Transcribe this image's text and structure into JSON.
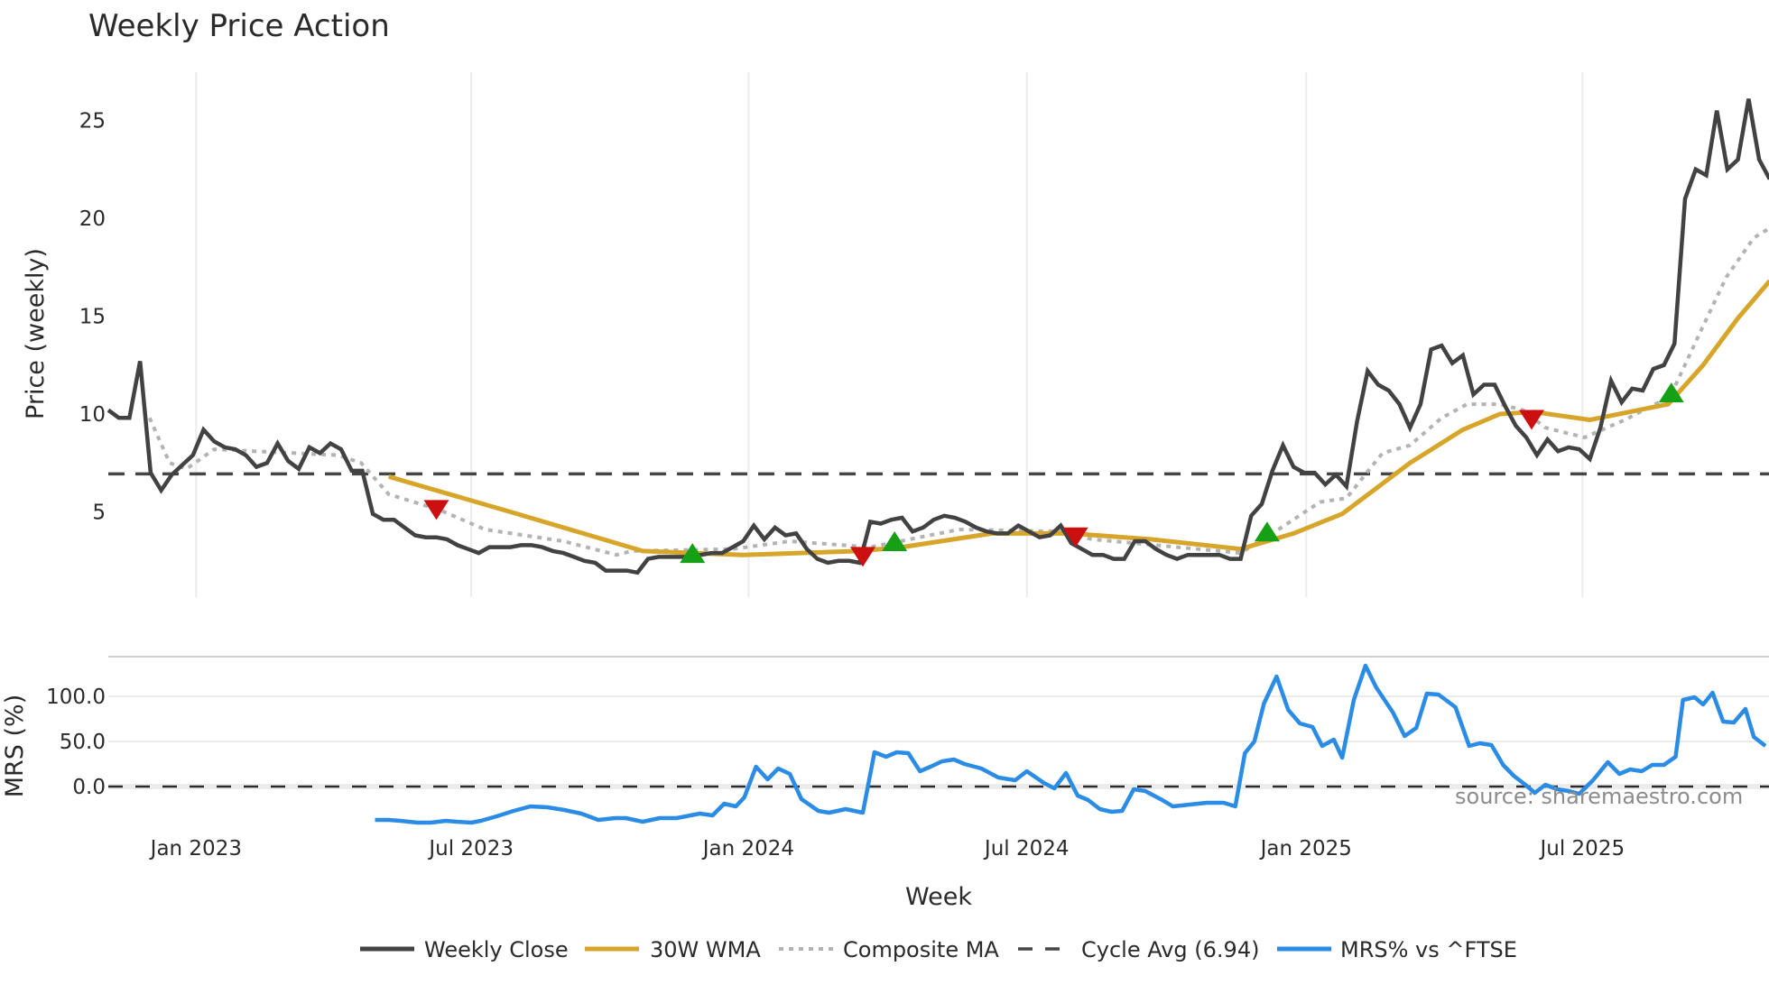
{
  "title": "Weekly Price Action",
  "colors": {
    "close": "#424242",
    "wma": "#d6a52a",
    "composite": "#b3b3b3",
    "cycle": "#454545",
    "mrs": "#2b8ce6",
    "buy": "#16a016",
    "sell": "#cc1010",
    "grid": "#ececec",
    "separator": "#cfcfcf",
    "source": "#8c8c8c"
  },
  "source_note": "source: sharemaestro.com",
  "legend": [
    {
      "key": "close",
      "label": "Weekly Close",
      "style": "solid"
    },
    {
      "key": "wma",
      "label": "30W WMA",
      "style": "solid"
    },
    {
      "key": "composite",
      "label": "Composite MA",
      "style": "dotted"
    },
    {
      "key": "cycle",
      "label": "Cycle Avg (6.94)",
      "style": "dashed"
    },
    {
      "key": "mrs",
      "label": "MRS% vs ^FTSE",
      "style": "solid"
    }
  ],
  "chart_data": [
    {
      "type": "line",
      "title": "Weekly Price Action",
      "xlabel": "Week",
      "ylabel": "Price (weekly)",
      "x_tick_labels": [
        "Jan 2023",
        "Jul 2023",
        "Jan 2024",
        "Jul 2024",
        "Jan 2025",
        "Jul 2025"
      ],
      "x_tick_week_index": [
        8.3,
        34.3,
        60.5,
        86.8,
        113.2,
        139.3
      ],
      "y_ticks": [
        5,
        10,
        15,
        20,
        25
      ],
      "ylim": [
        0.7,
        27.4
      ],
      "grid": "vertical",
      "x_range_weeks": [
        0,
        157
      ],
      "x_start_approx": "Nov 2022",
      "cycle_avg": 6.94,
      "series": [
        {
          "name": "Weekly Close",
          "values": [
            10.2,
            9.8,
            9.8,
            12.7,
            7.0,
            6.1,
            6.9,
            7.4,
            7.9,
            9.2,
            8.6,
            8.3,
            8.2,
            7.9,
            7.3,
            7.5,
            8.5,
            7.6,
            7.2,
            8.3,
            8.0,
            8.5,
            8.2,
            7.1,
            7.1,
            4.9,
            4.6,
            4.6,
            4.2,
            3.8,
            3.7,
            3.7,
            3.6,
            3.3,
            3.1,
            2.9,
            3.2,
            3.2,
            3.2,
            3.3,
            3.3,
            3.2,
            3.0,
            2.9,
            2.7,
            2.5,
            2.4,
            2.0,
            2.0,
            2.0,
            1.9,
            2.6,
            2.7,
            2.7,
            2.7,
            2.7,
            2.8,
            2.9,
            2.9,
            3.2,
            3.5,
            4.3,
            3.6,
            4.2,
            3.8,
            3.9,
            3.1,
            2.6,
            2.4,
            2.5,
            2.5,
            2.4,
            4.5,
            4.4,
            4.6,
            4.7,
            4.0,
            4.2,
            4.6,
            4.8,
            4.7,
            4.5,
            4.2,
            4.0,
            3.9,
            3.9,
            4.3,
            4.0,
            3.7,
            3.8,
            4.3,
            3.4,
            3.1,
            2.8,
            2.8,
            2.6,
            2.6,
            3.5,
            3.5,
            3.1,
            2.8,
            2.6,
            2.8,
            2.8,
            2.8,
            2.8,
            2.6,
            2.6,
            4.8,
            5.4,
            7.1,
            8.4,
            7.3,
            7.0,
            7.0,
            6.4,
            6.9,
            6.3,
            9.6,
            12.2,
            11.5,
            11.2,
            10.5,
            9.3,
            10.5,
            13.3,
            13.5,
            12.6,
            13.0,
            11.0,
            11.5,
            11.5,
            10.4,
            9.4,
            8.8,
            7.9,
            8.7,
            8.1,
            8.3,
            8.2,
            7.7,
            9.3,
            11.7,
            10.6,
            11.3,
            11.2,
            12.3,
            12.5,
            13.6,
            21.0,
            22.5,
            22.2,
            25.5,
            22.5,
            23.0,
            26.1,
            23.0,
            22.0
          ]
        },
        {
          "name": "30W WMA",
          "points": [
            [
              26.5,
              6.8
            ],
            [
              38,
              5.0
            ],
            [
              50.5,
              3.0
            ],
            [
              60,
              2.8
            ],
            [
              71,
              3.0
            ],
            [
              75,
              3.2
            ],
            [
              83.5,
              3.9
            ],
            [
              91,
              3.9
            ],
            [
              98.5,
              3.6
            ],
            [
              107,
              3.1
            ],
            [
              112,
              3.9
            ],
            [
              116.6,
              4.9
            ],
            [
              123,
              7.5
            ],
            [
              128,
              9.2
            ],
            [
              131.5,
              10.0
            ],
            [
              134.8,
              10.1
            ],
            [
              140,
              9.7
            ],
            [
              147.4,
              10.5
            ],
            [
              150.7,
              12.5
            ],
            [
              154,
              14.9
            ],
            [
              157,
              16.8
            ]
          ]
        },
        {
          "name": "Composite MA",
          "points": [
            [
              3.9,
              9.8
            ],
            [
              5.8,
              7.5
            ],
            [
              7.4,
              7.2
            ],
            [
              10,
              8.2
            ],
            [
              21.7,
              7.9
            ],
            [
              23.9,
              7.5
            ],
            [
              26.5,
              5.9
            ],
            [
              31.3,
              5.1
            ],
            [
              35.6,
              4.1
            ],
            [
              43,
              3.5
            ],
            [
              48,
              2.8
            ],
            [
              49.5,
              3.0
            ],
            [
              59,
              3.1
            ],
            [
              64.4,
              3.5
            ],
            [
              72,
              3.2
            ],
            [
              80.4,
              4.1
            ],
            [
              90,
              4.0
            ],
            [
              93,
              3.6
            ],
            [
              107,
              2.9
            ],
            [
              110,
              3.9
            ],
            [
              114.5,
              5.5
            ],
            [
              117,
              5.7
            ],
            [
              120.4,
              8.0
            ],
            [
              123,
              8.4
            ],
            [
              126,
              9.8
            ],
            [
              128.4,
              10.5
            ],
            [
              131.5,
              10.5
            ],
            [
              133.7,
              10.2
            ],
            [
              135.8,
              9.3
            ],
            [
              139.5,
              8.8
            ],
            [
              143.3,
              9.7
            ],
            [
              147.6,
              10.9
            ],
            [
              150.7,
              14.5
            ],
            [
              152.9,
              17.0
            ],
            [
              155.5,
              19.0
            ],
            [
              157,
              19.5
            ]
          ]
        }
      ],
      "signals": [
        {
          "type": "sell",
          "week_index": 31.0,
          "price": 5.1
        },
        {
          "type": "buy",
          "week_index": 55.2,
          "price": 2.9
        },
        {
          "type": "sell",
          "week_index": 71.3,
          "price": 2.7
        },
        {
          "type": "buy",
          "week_index": 74.3,
          "price": 3.5
        },
        {
          "type": "sell",
          "week_index": 91.4,
          "price": 3.7
        },
        {
          "type": "buy",
          "week_index": 109.5,
          "price": 4.0
        },
        {
          "type": "sell",
          "week_index": 134.5,
          "price": 9.7
        },
        {
          "type": "buy",
          "week_index": 147.7,
          "price": 11.1
        }
      ]
    },
    {
      "type": "line",
      "title": "",
      "xlabel": "Week",
      "ylabel": "MRS (%)",
      "y_ticks": [
        "100.0",
        "50.0",
        "0.0"
      ],
      "y_tick_values": [
        100,
        50,
        0
      ],
      "ylim": [
        -45,
        144
      ],
      "zero_line": "dashed",
      "series": [
        {
          "name": "MRS% vs ^FTSE",
          "points": [
            [
              25.2,
              -37
            ],
            [
              26.5,
              -37
            ],
            [
              27.6,
              -38
            ],
            [
              29.2,
              -40
            ],
            [
              30.5,
              -40
            ],
            [
              31.9,
              -38
            ],
            [
              32.9,
              -39
            ],
            [
              34.3,
              -40
            ],
            [
              35.2,
              -38
            ],
            [
              36.7,
              -33
            ],
            [
              38.3,
              -27
            ],
            [
              39.9,
              -22
            ],
            [
              41.5,
              -23
            ],
            [
              43.1,
              -26
            ],
            [
              44.7,
              -30
            ],
            [
              46.3,
              -37
            ],
            [
              47.9,
              -35
            ],
            [
              48.9,
              -35
            ],
            [
              50.5,
              -39
            ],
            [
              52.1,
              -35
            ],
            [
              53.7,
              -35
            ],
            [
              55.9,
              -30
            ],
            [
              57.1,
              -32
            ],
            [
              58.2,
              -19
            ],
            [
              59.3,
              -22
            ],
            [
              60.1,
              -12
            ],
            [
              61.2,
              22
            ],
            [
              62.3,
              8
            ],
            [
              63.3,
              20
            ],
            [
              64.4,
              14
            ],
            [
              65.5,
              -14
            ],
            [
              67.1,
              -27
            ],
            [
              68.1,
              -29
            ],
            [
              69.7,
              -25
            ],
            [
              71.3,
              -29
            ],
            [
              72.4,
              38
            ],
            [
              73.5,
              33
            ],
            [
              74.5,
              38
            ],
            [
              75.6,
              37
            ],
            [
              76.7,
              17
            ],
            [
              77.7,
              22
            ],
            [
              78.8,
              28
            ],
            [
              79.9,
              30
            ],
            [
              80.9,
              25
            ],
            [
              82.5,
              20
            ],
            [
              84.1,
              10
            ],
            [
              85.7,
              7
            ],
            [
              86.8,
              17
            ],
            [
              88.4,
              4
            ],
            [
              89.4,
              -2
            ],
            [
              90.5,
              15
            ],
            [
              91.6,
              -10
            ],
            [
              92.6,
              -15
            ],
            [
              93.7,
              -25
            ],
            [
              94.8,
              -28
            ],
            [
              95.8,
              -27
            ],
            [
              96.9,
              -3
            ],
            [
              98.0,
              -5
            ],
            [
              99.6,
              -15
            ],
            [
              100.6,
              -22
            ],
            [
              102.2,
              -20
            ],
            [
              103.8,
              -18
            ],
            [
              105.4,
              -18
            ],
            [
              106.5,
              -22
            ],
            [
              107.4,
              37
            ],
            [
              108.3,
              50
            ],
            [
              109.2,
              92
            ],
            [
              110.4,
              122
            ],
            [
              111.5,
              85
            ],
            [
              112.6,
              70
            ],
            [
              113.8,
              66
            ],
            [
              114.7,
              45
            ],
            [
              115.8,
              52
            ],
            [
              116.6,
              32
            ],
            [
              117.7,
              96
            ],
            [
              118.8,
              134
            ],
            [
              119.8,
              110
            ],
            [
              121.4,
              82
            ],
            [
              122.5,
              56
            ],
            [
              123.6,
              65
            ],
            [
              124.6,
              103
            ],
            [
              125.7,
              102
            ],
            [
              127.3,
              88
            ],
            [
              128.6,
              45
            ],
            [
              129.6,
              48
            ],
            [
              130.7,
              46
            ],
            [
              131.8,
              24
            ],
            [
              132.8,
              12
            ],
            [
              133.9,
              2
            ],
            [
              134.8,
              -7
            ],
            [
              135.8,
              2
            ],
            [
              136.9,
              -3
            ],
            [
              138.0,
              -5
            ],
            [
              139.0,
              -8
            ],
            [
              140.3,
              7
            ],
            [
              141.7,
              27
            ],
            [
              142.8,
              14
            ],
            [
              143.8,
              19
            ],
            [
              144.9,
              17
            ],
            [
              145.9,
              24
            ],
            [
              147.0,
              24
            ],
            [
              148.1,
              33
            ],
            [
              148.8,
              96
            ],
            [
              149.9,
              99
            ],
            [
              150.7,
              91
            ],
            [
              151.6,
              104
            ],
            [
              152.6,
              72
            ],
            [
              153.6,
              71
            ],
            [
              154.7,
              86
            ],
            [
              155.5,
              55
            ],
            [
              156.6,
              45
            ]
          ]
        }
      ]
    }
  ]
}
